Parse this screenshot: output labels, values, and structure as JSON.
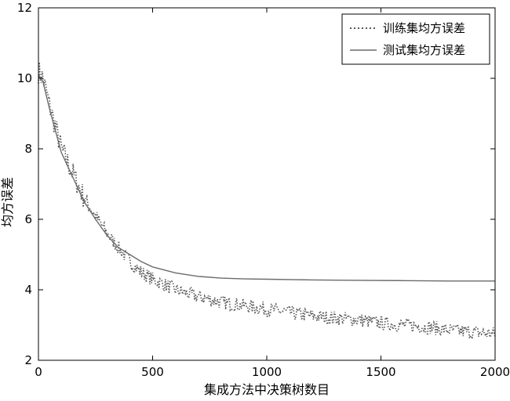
{
  "chart_data": {
    "type": "line",
    "xlabel": "集成方法中决策树数目",
    "ylabel": "均方误差",
    "xlim": [
      0,
      2000
    ],
    "ylim": [
      2,
      12
    ],
    "xticks": [
      "0",
      "500",
      "1000",
      "1500",
      "2000"
    ],
    "yticks": [
      "2",
      "4",
      "6",
      "8",
      "10",
      "12"
    ],
    "grid": false,
    "legend_position": "top-right",
    "series": [
      {
        "name": "训练集均方误差",
        "style": "dotted",
        "color": "#555555",
        "x": [
          0,
          20,
          50,
          100,
          150,
          200,
          250,
          300,
          350,
          400,
          450,
          500,
          600,
          700,
          800,
          900,
          1000,
          1100,
          1200,
          1300,
          1400,
          1500,
          1600,
          1700,
          1800,
          1900,
          2000
        ],
        "y": [
          10.2,
          10.0,
          9.2,
          8.0,
          7.3,
          6.6,
          6.1,
          5.6,
          5.2,
          4.8,
          4.5,
          4.3,
          4.0,
          3.8,
          3.65,
          3.55,
          3.45,
          3.35,
          3.25,
          3.2,
          3.15,
          3.05,
          3.0,
          2.95,
          2.85,
          2.8,
          2.75
        ]
      },
      {
        "name": "测试集均方误差",
        "style": "solid",
        "color": "#6b6b6b",
        "x": [
          0,
          20,
          50,
          100,
          150,
          200,
          250,
          300,
          350,
          400,
          450,
          500,
          600,
          700,
          800,
          900,
          1000,
          1200,
          1400,
          1600,
          1800,
          2000
        ],
        "y": [
          10.1,
          9.9,
          9.1,
          7.9,
          7.2,
          6.5,
          6.0,
          5.55,
          5.2,
          5.0,
          4.8,
          4.65,
          4.48,
          4.38,
          4.33,
          4.31,
          4.3,
          4.28,
          4.27,
          4.26,
          4.25,
          4.25
        ]
      }
    ]
  }
}
